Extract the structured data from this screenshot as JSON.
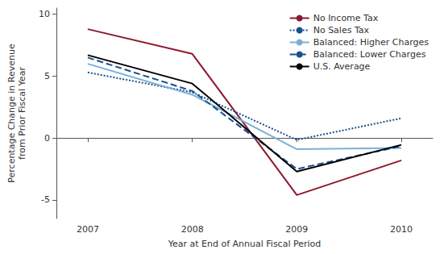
{
  "chart_data": {
    "type": "line",
    "x": [
      2007,
      2008,
      2009,
      2010
    ],
    "xlabel": "Year at End of Annual Fiscal Period",
    "ylabel": "Percentage Change in Revenue\nfrom Prior Fiscal Year",
    "xlim": [
      2006.7,
      2010.3
    ],
    "xticks": [
      2007,
      2008,
      2009,
      2010
    ],
    "ylim": [
      -6.5,
      10.5
    ],
    "yticks": [
      -5,
      0,
      5,
      10
    ],
    "grid": false,
    "legend": "upper right",
    "series": [
      {
        "name": "No Income Tax",
        "color": "#8b1a2e",
        "line_style": "solid",
        "values": [
          8.8,
          6.8,
          -4.6,
          -1.8
        ]
      },
      {
        "name": "No Sales Tax",
        "color": "#1a4f8c",
        "line_style": "dotted",
        "values": [
          5.3,
          3.7,
          -0.15,
          1.6
        ]
      },
      {
        "name": "Balanced: Higher Charges",
        "color": "#7ab0d5",
        "line_style": "solid",
        "values": [
          6.0,
          3.5,
          -0.9,
          -0.8
        ]
      },
      {
        "name": "Balanced: Lower Charges",
        "color": "#1a4f8c",
        "line_style": "dashed",
        "values": [
          6.5,
          3.8,
          -2.5,
          -0.65
        ]
      },
      {
        "name": "U.S. Average",
        "color": "#000000",
        "line_style": "solid",
        "values": [
          6.7,
          4.4,
          -2.7,
          -0.55
        ]
      }
    ]
  }
}
